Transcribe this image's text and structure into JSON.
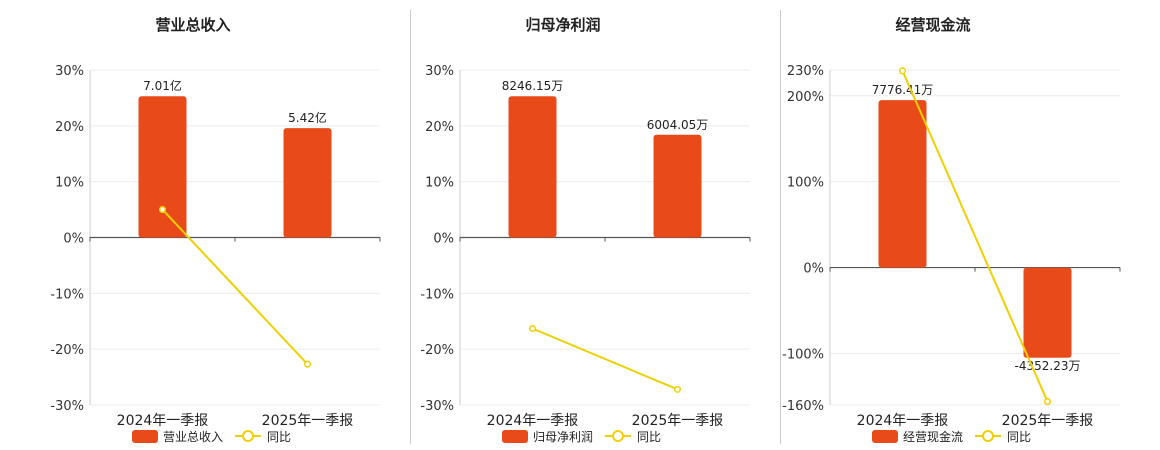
{
  "chart_data": [
    {
      "type": "bar",
      "title": "营业总收入",
      "categories": [
        "2024年一季报",
        "2025年一季报"
      ],
      "series": [
        {
          "name": "营业总收入",
          "kind": "bar",
          "axis": "value",
          "values": [
            25.3,
            19.6
          ],
          "labels": [
            "7.01亿",
            "5.42亿"
          ],
          "color": "#e84a1a"
        },
        {
          "name": "同比",
          "kind": "line",
          "axis": "percent",
          "values": [
            5,
            -22.7
          ],
          "color": "#f0d000"
        }
      ],
      "yticks": [
        "30%",
        "20%",
        "10%",
        "0%",
        "-10%",
        "-20%",
        "-30%"
      ],
      "ytick_values": [
        30,
        20,
        10,
        0,
        -10,
        -20,
        -30
      ],
      "ylim": [
        -30,
        30
      ],
      "grid": true,
      "legend": "bottom-center"
    },
    {
      "type": "bar",
      "title": "归母净利润",
      "categories": [
        "2024年一季报",
        "2025年一季报"
      ],
      "series": [
        {
          "name": "归母净利润",
          "kind": "bar",
          "axis": "value",
          "values": [
            25.3,
            18.4
          ],
          "labels": [
            "8246.15万",
            "6004.05万"
          ],
          "color": "#e84a1a"
        },
        {
          "name": "同比",
          "kind": "line",
          "axis": "percent",
          "values": [
            -16.3,
            -27.2
          ],
          "color": "#f0d000"
        }
      ],
      "yticks": [
        "30%",
        "20%",
        "10%",
        "0%",
        "-10%",
        "-20%",
        "-30%"
      ],
      "ytick_values": [
        30,
        20,
        10,
        0,
        -10,
        -20,
        -30
      ],
      "ylim": [
        -30,
        30
      ],
      "grid": true,
      "legend": "bottom-center"
    },
    {
      "type": "bar",
      "title": "经营现金流",
      "categories": [
        "2024年一季报",
        "2025年一季报"
      ],
      "series": [
        {
          "name": "经营现金流",
          "kind": "bar",
          "axis": "value",
          "values": [
            195,
            -105
          ],
          "labels": [
            "7776.41万",
            "-4352.23万"
          ],
          "color": "#e84a1a"
        },
        {
          "name": "同比",
          "kind": "line",
          "axis": "percent",
          "values": [
            229,
            -156
          ],
          "color": "#f0d000"
        }
      ],
      "yticks": [
        "230%",
        "200%",
        "100%",
        "0%",
        "-100%",
        "-160%"
      ],
      "ytick_values": [
        230,
        200,
        100,
        0,
        -100,
        -160
      ],
      "ylim": [
        -160,
        230
      ],
      "grid": true,
      "legend": "bottom-center"
    }
  ]
}
